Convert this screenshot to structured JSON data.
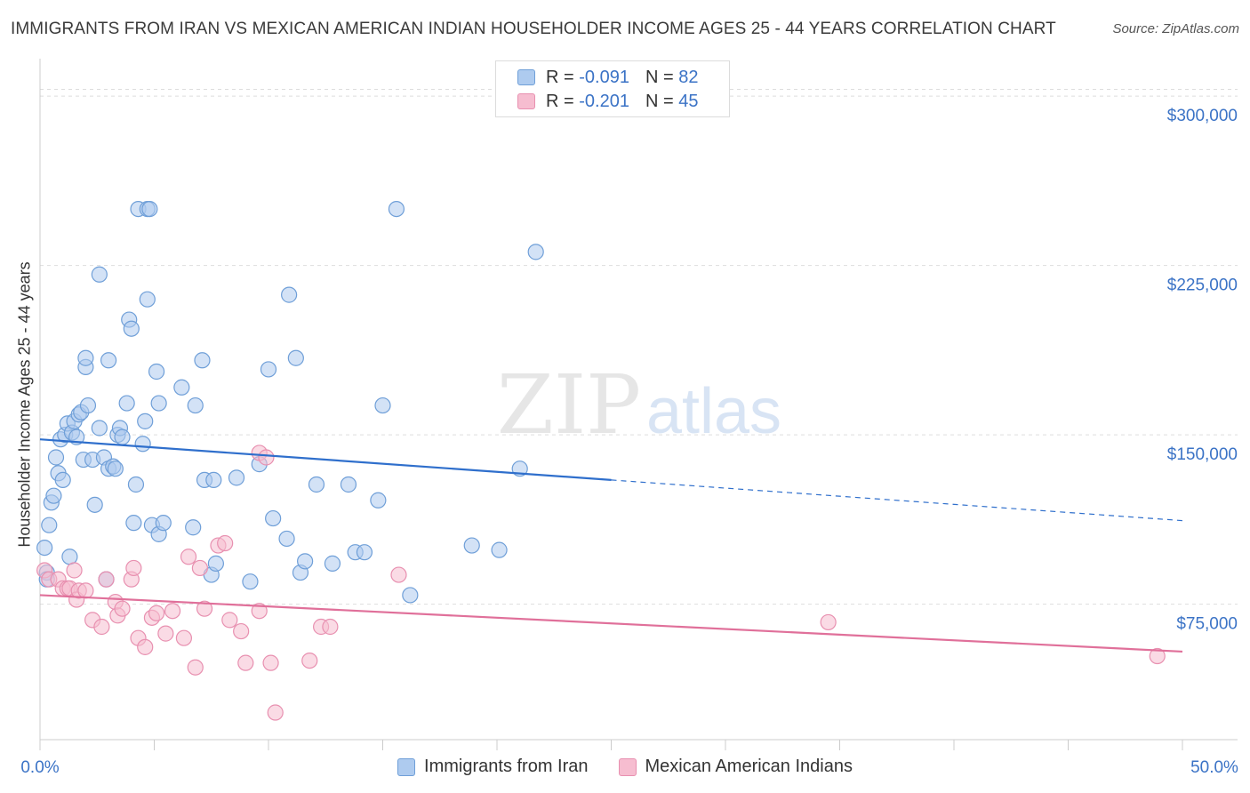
{
  "title": "IMMIGRANTS FROM IRAN VS MEXICAN AMERICAN INDIAN HOUSEHOLDER INCOME AGES 25 - 44 YEARS CORRELATION CHART",
  "source": "Source: ZipAtlas.com",
  "watermark": {
    "zip": "ZIP",
    "atlas": "atlas"
  },
  "legend": {
    "r_key": "R =",
    "n_key": "N =",
    "series": [
      {
        "r": "-0.091",
        "n": "82"
      },
      {
        "r": "-0.201",
        "n": "45"
      }
    ]
  },
  "colors": {
    "blue_fill": "#aecbef",
    "blue_stroke": "#6f9fd8",
    "blue_line": "#2f6fcc",
    "pink_fill": "#f6bdd0",
    "pink_stroke": "#e890b0",
    "pink_line": "#e0709a",
    "grid": "#dddddd",
    "tick_text": "#3b73c6"
  },
  "chart_data": {
    "type": "scatter",
    "title": "IMMIGRANTS FROM IRAN VS MEXICAN AMERICAN INDIAN HOUSEHOLDER INCOME AGES 25 - 44 YEARS CORRELATION CHART",
    "xlabel": "",
    "ylabel": "Householder Income Ages 25 - 44 years",
    "xlim": [
      0,
      50
    ],
    "ylim": [
      15000,
      315000
    ],
    "x_tick_labels": [
      "0.0%",
      "50.0%"
    ],
    "y_ticks": [
      75000,
      150000,
      225000,
      300000
    ],
    "y_tick_labels": [
      "$75,000",
      "$150,000",
      "$225,000",
      "$300,000"
    ],
    "grid": true,
    "legend_position": "top-center",
    "series": [
      {
        "name": "Immigrants from Iran",
        "r": -0.091,
        "n": 82,
        "trend": {
          "x": [
            0,
            25
          ],
          "y": [
            148000,
            130000
          ],
          "dashed_to": [
            50,
            112000
          ]
        },
        "points": [
          [
            0.2,
            100000
          ],
          [
            0.3,
            89000
          ],
          [
            0.3,
            86000
          ],
          [
            0.4,
            110000
          ],
          [
            0.5,
            120000
          ],
          [
            0.6,
            123000
          ],
          [
            0.7,
            140000
          ],
          [
            0.8,
            133000
          ],
          [
            0.9,
            148000
          ],
          [
            1.0,
            130000
          ],
          [
            1.1,
            150000
          ],
          [
            1.2,
            155000
          ],
          [
            1.3,
            96000
          ],
          [
            1.4,
            151000
          ],
          [
            1.5,
            156000
          ],
          [
            1.6,
            149000
          ],
          [
            1.7,
            159000
          ],
          [
            1.8,
            160000
          ],
          [
            1.9,
            139000
          ],
          [
            2.0,
            180000
          ],
          [
            2.0,
            184000
          ],
          [
            2.1,
            163000
          ],
          [
            2.3,
            139000
          ],
          [
            2.4,
            119000
          ],
          [
            2.6,
            221000
          ],
          [
            2.6,
            153000
          ],
          [
            2.8,
            140000
          ],
          [
            2.9,
            86000
          ],
          [
            3.0,
            183000
          ],
          [
            3.0,
            135000
          ],
          [
            3.2,
            136000
          ],
          [
            3.3,
            135000
          ],
          [
            3.4,
            150000
          ],
          [
            3.5,
            153000
          ],
          [
            3.6,
            149000
          ],
          [
            3.8,
            164000
          ],
          [
            3.9,
            201000
          ],
          [
            4.0,
            197000
          ],
          [
            4.1,
            111000
          ],
          [
            4.2,
            128000
          ],
          [
            4.3,
            250000
          ],
          [
            4.5,
            146000
          ],
          [
            4.6,
            156000
          ],
          [
            4.7,
            210000
          ],
          [
            4.7,
            250000
          ],
          [
            4.8,
            250000
          ],
          [
            4.9,
            110000
          ],
          [
            5.1,
            178000
          ],
          [
            5.2,
            164000
          ],
          [
            5.2,
            106000
          ],
          [
            5.4,
            111000
          ],
          [
            6.2,
            171000
          ],
          [
            6.7,
            109000
          ],
          [
            6.8,
            163000
          ],
          [
            7.1,
            183000
          ],
          [
            7.2,
            130000
          ],
          [
            7.5,
            88000
          ],
          [
            7.7,
            93000
          ],
          [
            7.6,
            130000
          ],
          [
            8.6,
            131000
          ],
          [
            9.2,
            85000
          ],
          [
            9.6,
            137000
          ],
          [
            10.0,
            179000
          ],
          [
            10.2,
            113000
          ],
          [
            10.8,
            104000
          ],
          [
            10.9,
            212000
          ],
          [
            11.2,
            184000
          ],
          [
            11.4,
            89000
          ],
          [
            11.6,
            94000
          ],
          [
            12.1,
            128000
          ],
          [
            12.8,
            93000
          ],
          [
            13.5,
            128000
          ],
          [
            13.8,
            98000
          ],
          [
            14.2,
            98000
          ],
          [
            14.8,
            121000
          ],
          [
            15.0,
            163000
          ],
          [
            15.6,
            250000
          ],
          [
            16.2,
            79000
          ],
          [
            18.9,
            101000
          ],
          [
            20.1,
            99000
          ],
          [
            21.0,
            135000
          ],
          [
            21.7,
            231000
          ]
        ]
      },
      {
        "name": "Mexican American Indians",
        "r": -0.201,
        "n": 45,
        "trend": {
          "x": [
            0,
            50
          ],
          "y": [
            79000,
            54000
          ]
        },
        "points": [
          [
            0.2,
            90000
          ],
          [
            0.4,
            86000
          ],
          [
            0.8,
            86000
          ],
          [
            1.0,
            82000
          ],
          [
            1.2,
            82000
          ],
          [
            1.3,
            82000
          ],
          [
            1.5,
            90000
          ],
          [
            1.6,
            77000
          ],
          [
            1.7,
            81000
          ],
          [
            2.0,
            81000
          ],
          [
            2.3,
            68000
          ],
          [
            2.7,
            65000
          ],
          [
            2.9,
            86000
          ],
          [
            3.3,
            76000
          ],
          [
            3.4,
            70000
          ],
          [
            3.6,
            73000
          ],
          [
            4.0,
            86000
          ],
          [
            4.1,
            91000
          ],
          [
            4.3,
            60000
          ],
          [
            4.6,
            56000
          ],
          [
            4.9,
            69000
          ],
          [
            5.1,
            71000
          ],
          [
            5.5,
            62000
          ],
          [
            5.8,
            72000
          ],
          [
            6.3,
            60000
          ],
          [
            6.5,
            96000
          ],
          [
            6.8,
            47000
          ],
          [
            7.0,
            91000
          ],
          [
            7.2,
            73000
          ],
          [
            7.8,
            101000
          ],
          [
            8.1,
            102000
          ],
          [
            8.3,
            68000
          ],
          [
            8.8,
            63000
          ],
          [
            9.0,
            49000
          ],
          [
            9.6,
            72000
          ],
          [
            9.6,
            142000
          ],
          [
            9.9,
            140000
          ],
          [
            10.1,
            49000
          ],
          [
            10.3,
            27000
          ],
          [
            11.8,
            50000
          ],
          [
            12.3,
            65000
          ],
          [
            12.7,
            65000
          ],
          [
            15.7,
            88000
          ],
          [
            34.5,
            67000
          ],
          [
            48.9,
            52000
          ]
        ]
      }
    ]
  }
}
